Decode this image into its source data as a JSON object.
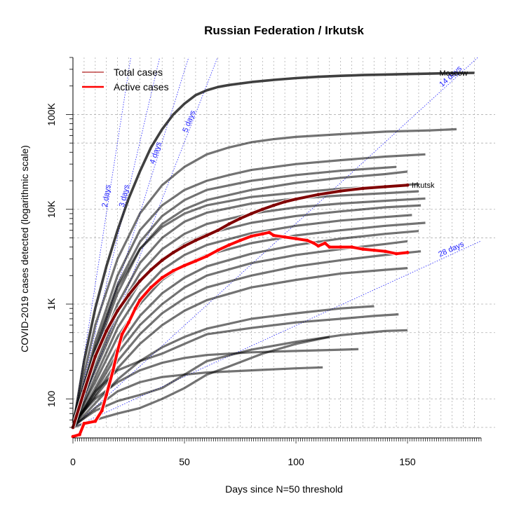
{
  "chart_data": {
    "type": "line",
    "title": "Russian Federation / Irkutsk",
    "xlabel": "Days since N=50 threshold",
    "ylabel": "COVID-2019 cases detected (logarithmic scale)",
    "x_ticks": [
      0,
      50,
      100,
      150
    ],
    "x_range": [
      0,
      183
    ],
    "y_scale": "log",
    "y_range": [
      50,
      400000
    ],
    "y_ticks": [
      {
        "value": 100,
        "label": "100"
      },
      {
        "value": 1000,
        "label": "1K"
      },
      {
        "value": 10000,
        "label": "10K"
      },
      {
        "value": 100000,
        "label": "100K"
      }
    ],
    "grid": true,
    "legend": {
      "position": "top-left",
      "entries": [
        {
          "label": "Total cases",
          "color": "#b22222"
        },
        {
          "label": "Active cases",
          "color": "#ff0000"
        }
      ]
    },
    "doubling_lines": [
      {
        "label": "2 days",
        "days": 2
      },
      {
        "label": "3 days",
        "days": 3
      },
      {
        "label": "4 days",
        "days": 4
      },
      {
        "label": "5 days",
        "days": 5
      },
      {
        "label": "14 days",
        "days": 14
      },
      {
        "label": "28 days",
        "days": 28
      }
    ],
    "highlight_series": [
      {
        "name": "Total cases",
        "color": "#800000",
        "points": [
          [
            0,
            50
          ],
          [
            5,
            120
          ],
          [
            10,
            280
          ],
          [
            15,
            520
          ],
          [
            20,
            850
          ],
          [
            25,
            1250
          ],
          [
            30,
            1750
          ],
          [
            35,
            2300
          ],
          [
            40,
            2900
          ],
          [
            45,
            3500
          ],
          [
            50,
            4100
          ],
          [
            55,
            4700
          ],
          [
            60,
            5300
          ],
          [
            65,
            6000
          ],
          [
            70,
            7000
          ],
          [
            75,
            8000
          ],
          [
            80,
            9000
          ],
          [
            85,
            10000
          ],
          [
            90,
            11000
          ],
          [
            95,
            12000
          ],
          [
            100,
            12800
          ],
          [
            110,
            14300
          ],
          [
            120,
            15600
          ],
          [
            130,
            16600
          ],
          [
            140,
            17300
          ],
          [
            150,
            18000
          ]
        ]
      },
      {
        "name": "Active cases",
        "color": "#ff0000",
        "points": [
          [
            0,
            40
          ],
          [
            3,
            42
          ],
          [
            5,
            55
          ],
          [
            10,
            58
          ],
          [
            13,
            75
          ],
          [
            15,
            110
          ],
          [
            18,
            200
          ],
          [
            20,
            320
          ],
          [
            22,
            480
          ],
          [
            25,
            640
          ],
          [
            28,
            900
          ],
          [
            30,
            1100
          ],
          [
            35,
            1500
          ],
          [
            40,
            1900
          ],
          [
            45,
            2250
          ],
          [
            50,
            2550
          ],
          [
            55,
            2850
          ],
          [
            60,
            3200
          ],
          [
            65,
            3700
          ],
          [
            70,
            4200
          ],
          [
            75,
            4700
          ],
          [
            80,
            5200
          ],
          [
            85,
            5500
          ],
          [
            88,
            5700
          ],
          [
            90,
            5300
          ],
          [
            95,
            5100
          ],
          [
            100,
            4900
          ],
          [
            105,
            4700
          ],
          [
            108,
            4400
          ],
          [
            110,
            4100
          ],
          [
            113,
            4400
          ],
          [
            115,
            4000
          ],
          [
            120,
            4000
          ],
          [
            125,
            4000
          ],
          [
            130,
            3800
          ],
          [
            135,
            3700
          ],
          [
            140,
            3600
          ],
          [
            145,
            3400
          ],
          [
            150,
            3500
          ]
        ]
      }
    ],
    "labeled_series": [
      {
        "name": "Moscow",
        "points": [
          [
            0,
            50
          ],
          [
            5,
            250
          ],
          [
            10,
            900
          ],
          [
            15,
            2500
          ],
          [
            20,
            6000
          ],
          [
            25,
            13000
          ],
          [
            30,
            25000
          ],
          [
            35,
            45000
          ],
          [
            40,
            70000
          ],
          [
            45,
            100000
          ],
          [
            50,
            130000
          ],
          [
            55,
            160000
          ],
          [
            60,
            180000
          ],
          [
            65,
            195000
          ],
          [
            70,
            205000
          ],
          [
            80,
            220000
          ],
          [
            90,
            232000
          ],
          [
            100,
            242000
          ],
          [
            110,
            250000
          ],
          [
            120,
            256000
          ],
          [
            130,
            261000
          ],
          [
            140,
            264000
          ],
          [
            150,
            267000
          ],
          [
            160,
            270000
          ],
          [
            170,
            273000
          ],
          [
            180,
            275000
          ]
        ]
      },
      {
        "name": "Irkutsk",
        "points": [
          [
            150,
            18000
          ]
        ]
      }
    ],
    "background_series": [
      [
        [
          0,
          55
        ],
        [
          10,
          600
        ],
        [
          20,
          3000
        ],
        [
          30,
          9000
        ],
        [
          40,
          18000
        ],
        [
          50,
          28000
        ],
        [
          60,
          38000
        ],
        [
          70,
          45000
        ],
        [
          80,
          51000
        ],
        [
          90,
          55000
        ],
        [
          100,
          58000
        ],
        [
          120,
          62000
        ],
        [
          140,
          66000
        ],
        [
          160,
          68000
        ],
        [
          172,
          70000
        ]
      ],
      [
        [
          0,
          50
        ],
        [
          10,
          400
        ],
        [
          20,
          2000
        ],
        [
          30,
          6000
        ],
        [
          40,
          11000
        ],
        [
          50,
          16000
        ],
        [
          60,
          20000
        ],
        [
          70,
          23000
        ],
        [
          80,
          26000
        ],
        [
          100,
          30000
        ],
        [
          120,
          33000
        ],
        [
          140,
          36000
        ],
        [
          158,
          38000
        ]
      ],
      [
        [
          0,
          52
        ],
        [
          10,
          350
        ],
        [
          20,
          1600
        ],
        [
          30,
          4500
        ],
        [
          40,
          8500
        ],
        [
          50,
          12500
        ],
        [
          60,
          16000
        ],
        [
          80,
          20000
        ],
        [
          100,
          23000
        ],
        [
          120,
          25500
        ],
        [
          145,
          28000
        ]
      ],
      [
        [
          0,
          50
        ],
        [
          10,
          300
        ],
        [
          20,
          1300
        ],
        [
          30,
          3800
        ],
        [
          40,
          7000
        ],
        [
          50,
          10000
        ],
        [
          60,
          12500
        ],
        [
          80,
          16000
        ],
        [
          100,
          19000
        ],
        [
          120,
          21500
        ],
        [
          140,
          23500
        ],
        [
          150,
          25000
        ]
      ],
      [
        [
          0,
          60
        ],
        [
          10,
          330
        ],
        [
          20,
          1500
        ],
        [
          30,
          3800
        ],
        [
          40,
          6500
        ],
        [
          50,
          9000
        ],
        [
          60,
          11000
        ],
        [
          80,
          13500
        ],
        [
          100,
          15000
        ],
        [
          120,
          16500
        ],
        [
          140,
          17500
        ],
        [
          155,
          18500
        ]
      ],
      [
        [
          0,
          55
        ],
        [
          10,
          260
        ],
        [
          20,
          1000
        ],
        [
          30,
          2700
        ],
        [
          40,
          5000
        ],
        [
          50,
          7400
        ],
        [
          60,
          9200
        ],
        [
          80,
          11500
        ],
        [
          100,
          13000
        ],
        [
          120,
          14000
        ],
        [
          145,
          15000
        ],
        [
          155,
          15500
        ]
      ],
      [
        [
          0,
          50
        ],
        [
          10,
          220
        ],
        [
          20,
          850
        ],
        [
          30,
          2100
        ],
        [
          40,
          3800
        ],
        [
          50,
          5500
        ],
        [
          60,
          7000
        ],
        [
          80,
          9000
        ],
        [
          100,
          10500
        ],
        [
          120,
          11500
        ],
        [
          145,
          12500
        ],
        [
          158,
          13000
        ]
      ],
      [
        [
          0,
          58
        ],
        [
          10,
          200
        ],
        [
          20,
          700
        ],
        [
          30,
          1700
        ],
        [
          40,
          3000
        ],
        [
          50,
          4300
        ],
        [
          60,
          5500
        ],
        [
          80,
          7200
        ],
        [
          100,
          8500
        ],
        [
          120,
          9500
        ],
        [
          140,
          10500
        ],
        [
          156,
          11000
        ]
      ],
      [
        [
          0,
          50
        ],
        [
          10,
          170
        ],
        [
          20,
          560
        ],
        [
          30,
          1300
        ],
        [
          40,
          2300
        ],
        [
          50,
          3300
        ],
        [
          60,
          4200
        ],
        [
          80,
          5600
        ],
        [
          100,
          6700
        ],
        [
          120,
          7600
        ],
        [
          140,
          8300
        ],
        [
          152,
          8700
        ]
      ],
      [
        [
          0,
          54
        ],
        [
          10,
          150
        ],
        [
          20,
          450
        ],
        [
          30,
          1000
        ],
        [
          40,
          1800
        ],
        [
          50,
          2600
        ],
        [
          60,
          3300
        ],
        [
          80,
          4400
        ],
        [
          100,
          5300
        ],
        [
          120,
          6000
        ],
        [
          140,
          6700
        ],
        [
          158,
          7200
        ]
      ],
      [
        [
          0,
          50
        ],
        [
          10,
          130
        ],
        [
          20,
          350
        ],
        [
          30,
          750
        ],
        [
          40,
          1300
        ],
        [
          50,
          1900
        ],
        [
          60,
          2500
        ],
        [
          80,
          3400
        ],
        [
          100,
          4200
        ],
        [
          120,
          4900
        ],
        [
          140,
          5500
        ],
        [
          155,
          5900
        ]
      ],
      [
        [
          0,
          52
        ],
        [
          10,
          120
        ],
        [
          20,
          300
        ],
        [
          30,
          600
        ],
        [
          40,
          1000
        ],
        [
          50,
          1500
        ],
        [
          60,
          2000
        ],
        [
          80,
          2700
        ],
        [
          100,
          3300
        ],
        [
          120,
          3800
        ],
        [
          140,
          4300
        ],
        [
          150,
          4600
        ]
      ],
      [
        [
          0,
          50
        ],
        [
          10,
          110
        ],
        [
          20,
          250
        ],
        [
          30,
          480
        ],
        [
          40,
          800
        ],
        [
          50,
          1150
        ],
        [
          60,
          1500
        ],
        [
          80,
          2000
        ],
        [
          100,
          2500
        ],
        [
          120,
          2900
        ],
        [
          140,
          3300
        ],
        [
          156,
          3600
        ]
      ],
      [
        [
          0,
          56
        ],
        [
          10,
          105
        ],
        [
          20,
          210
        ],
        [
          30,
          380
        ],
        [
          40,
          600
        ],
        [
          50,
          850
        ],
        [
          60,
          1100
        ],
        [
          80,
          1500
        ],
        [
          100,
          1800
        ],
        [
          120,
          2100
        ],
        [
          140,
          2300
        ],
        [
          150,
          2400
        ]
      ],
      [
        [
          0,
          50
        ],
        [
          10,
          90
        ],
        [
          20,
          160
        ],
        [
          30,
          250
        ],
        [
          40,
          350
        ],
        [
          50,
          450
        ],
        [
          60,
          550
        ],
        [
          80,
          700
        ],
        [
          100,
          800
        ],
        [
          120,
          900
        ],
        [
          135,
          950
        ]
      ],
      [
        [
          0,
          50
        ],
        [
          10,
          120
        ],
        [
          20,
          200
        ],
        [
          30,
          250
        ],
        [
          40,
          300
        ],
        [
          50,
          380
        ],
        [
          60,
          480
        ],
        [
          80,
          560
        ],
        [
          100,
          640
        ],
        [
          120,
          700
        ],
        [
          135,
          750
        ],
        [
          146,
          780
        ]
      ],
      [
        [
          0,
          55
        ],
        [
          10,
          100
        ],
        [
          20,
          150
        ],
        [
          30,
          200
        ],
        [
          40,
          240
        ],
        [
          50,
          270
        ],
        [
          60,
          290
        ],
        [
          80,
          310
        ],
        [
          100,
          320
        ],
        [
          120,
          330
        ],
        [
          128,
          335
        ]
      ],
      [
        [
          0,
          50
        ],
        [
          10,
          80
        ],
        [
          20,
          120
        ],
        [
          30,
          150
        ],
        [
          40,
          170
        ],
        [
          50,
          180
        ],
        [
          60,
          190
        ],
        [
          80,
          200
        ],
        [
          100,
          210
        ],
        [
          112,
          215
        ]
      ],
      [
        [
          0,
          52
        ],
        [
          10,
          75
        ],
        [
          20,
          95
        ],
        [
          30,
          110
        ],
        [
          40,
          130
        ],
        [
          50,
          180
        ],
        [
          60,
          250
        ],
        [
          80,
          330
        ],
        [
          100,
          400
        ],
        [
          120,
          470
        ],
        [
          140,
          520
        ],
        [
          150,
          530
        ]
      ],
      [
        [
          0,
          50
        ],
        [
          10,
          60
        ],
        [
          20,
          70
        ],
        [
          30,
          80
        ],
        [
          40,
          100
        ],
        [
          50,
          130
        ],
        [
          60,
          180
        ],
        [
          70,
          220
        ],
        [
          85,
          300
        ],
        [
          100,
          380
        ],
        [
          115,
          450
        ]
      ]
    ]
  }
}
